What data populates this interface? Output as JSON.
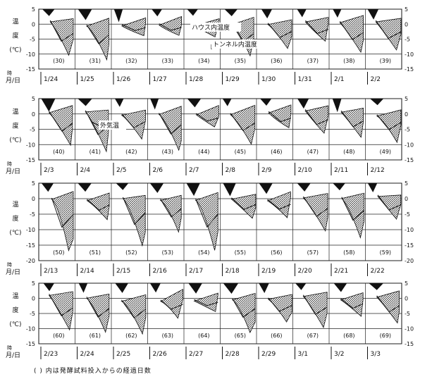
{
  "caption": "( ) 内は発酵試料投入からの経過日数",
  "legend": {
    "house": "ハウス内温度",
    "tunnel": "トンネル内温度",
    "outside": "外気温"
  },
  "colors": {
    "ink": "#111111",
    "house_fill": "#555555",
    "tunnel_fill": "#111111",
    "grid": "#222222"
  },
  "y_axis_chars": [
    "温",
    "度",
    "(℃)"
  ],
  "x_axis_unit": "月/日",
  "x_axis_hour_label": "時",
  "chart_data": [
    {
      "type": "area",
      "yticks": [
        5,
        0,
        -5,
        -10,
        -15
      ],
      "ylim": [
        -15,
        5
      ],
      "dates": [
        "1/24",
        "1/25",
        "1/26",
        "1/27",
        "1/28",
        "1/29",
        "1/30",
        "1/31",
        "2/1",
        "2/2"
      ],
      "days": [
        "(30)",
        "(31)",
        "(32)",
        "(33)",
        "(34)",
        "(35)",
        "(36)",
        "(37)",
        "(38)",
        "(39)"
      ],
      "annotations": [
        "ハウス内温度",
        "トンネル内温度"
      ]
    },
    {
      "type": "area",
      "yticks": [
        5,
        0,
        -5,
        -10,
        -15
      ],
      "ylim": [
        -15,
        5
      ],
      "dates": [
        "2/3",
        "2/4",
        "2/5",
        "2/6",
        "2/7",
        "2/8",
        "2/9",
        "2/10",
        "2/11",
        "2/12"
      ],
      "days": [
        "(40)",
        "(41)",
        "(42)",
        "(43)",
        "(44)",
        "(45)",
        "(46)",
        "(47)",
        "(48)",
        "(49)"
      ],
      "annotations": [
        "外気温"
      ]
    },
    {
      "type": "area",
      "yticks": [
        5,
        0,
        -5,
        -10,
        -15,
        -20
      ],
      "ylim": [
        -20,
        5
      ],
      "dates": [
        "2/13",
        "2/14",
        "2/15",
        "2/16",
        "2/17",
        "2/18",
        "2/19",
        "2/20",
        "2/21",
        "2/22"
      ],
      "days": [
        "(50)",
        "(51)",
        "(52)",
        "(53)",
        "(54)",
        "(55)",
        "(56)",
        "(57)",
        "(58)",
        "(59)"
      ],
      "annotations": []
    },
    {
      "type": "area",
      "yticks": [
        5,
        0,
        -5,
        -10,
        -15
      ],
      "ylim": [
        -15,
        5
      ],
      "dates": [
        "2/23",
        "2/24",
        "2/25",
        "2/26",
        "2/27",
        "2/28",
        "2/29",
        "3/1",
        "3/2",
        "3/3"
      ],
      "days": [
        "(60)",
        "(61)",
        "(62)",
        "(63)",
        "(64)",
        "(65)",
        "(66)",
        "(67)",
        "(68)",
        "(69)"
      ],
      "annotations": []
    }
  ]
}
